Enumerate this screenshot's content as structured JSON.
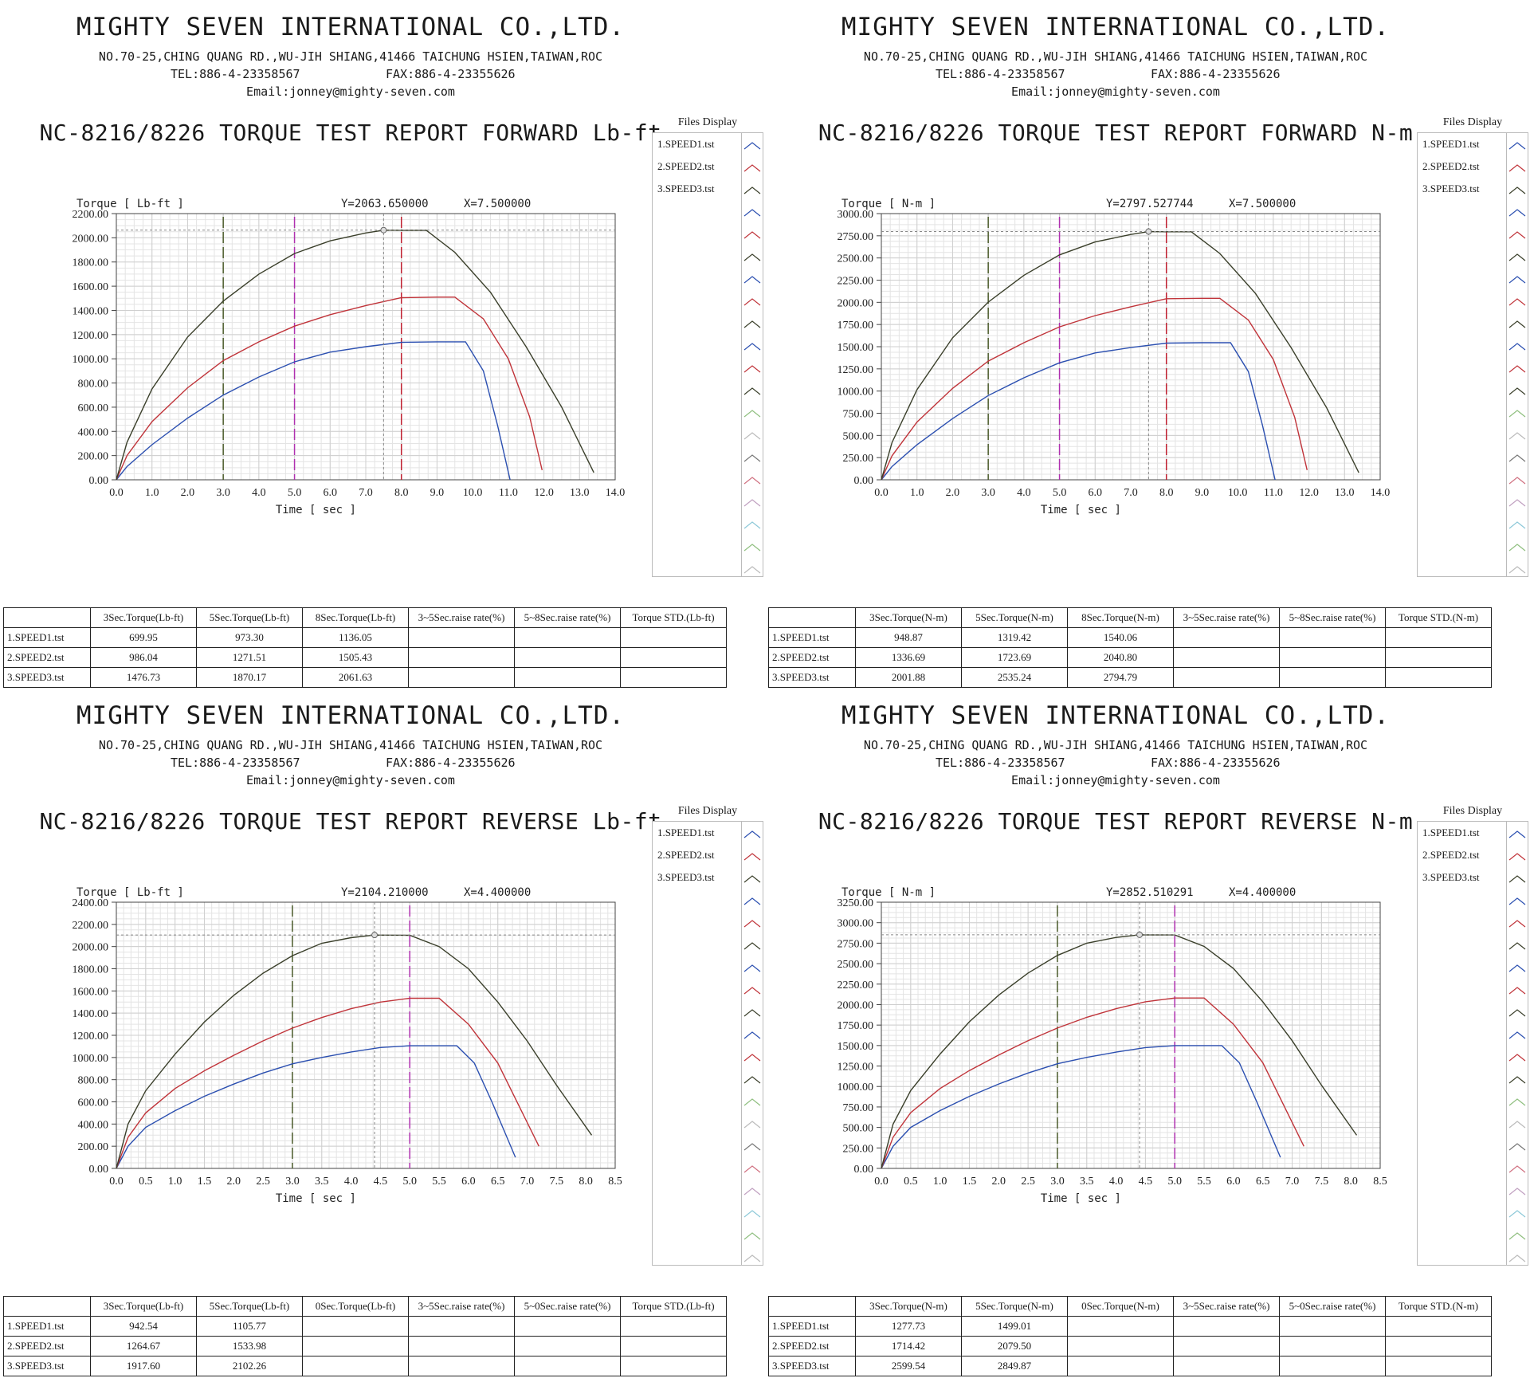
{
  "company": {
    "name": "MIGHTY SEVEN INTERNATIONAL CO.,LTD.",
    "address": "NO.70-25,CHING QUANG RD.,WU-JIH SHIANG,41466 TAICHUNG HSIEN,TAIWAN,ROC",
    "tel": "TEL:886-4-23358567",
    "fax": "FAX:886-4-23355626",
    "email": "Email:jonney@mighty-seven.com"
  },
  "files_display": {
    "title": "Files Display",
    "items": [
      "1.SPEED1.tst",
      "2.SPEED2.tst",
      "3.SPEED3.tst"
    ]
  },
  "series_colors": {
    "speed1": "#2b4fb0",
    "speed2": "#c0343a",
    "speed3": "#3a3f2a",
    "marker_green": "#4a5a2a",
    "marker_magenta": "#b030b0",
    "marker_red": "#c02030",
    "cursor": "#888888"
  },
  "chart_data": [
    {
      "type": "line",
      "title": "NC-8216/8226 TORQUE TEST REPORT FORWARD Lb-ft",
      "ylabel": "Torque [ Lb-ft ]",
      "xlabel": "Time [ sec ]",
      "cursor_readout": {
        "y_text": "Y=2063.650000",
        "x_text": "X=7.500000",
        "x": 7.5,
        "y": 2063.65
      },
      "xlim": [
        0,
        14
      ],
      "ylim": [
        0,
        2200
      ],
      "xticks": [
        0,
        1,
        2,
        3,
        4,
        5,
        6,
        7,
        8,
        9,
        10,
        11,
        12,
        13,
        14
      ],
      "yticks": [
        0,
        200,
        400,
        600,
        800,
        1000,
        1200,
        1400,
        1600,
        1800,
        2000,
        2200
      ],
      "xtick_decimals": 1,
      "grid": true,
      "markers": [
        {
          "x": 3,
          "color": "marker_green"
        },
        {
          "x": 5,
          "color": "marker_magenta"
        },
        {
          "x": 8,
          "color": "marker_red"
        }
      ],
      "series": [
        {
          "color": "speed1",
          "x": [
            0,
            0.3,
            1,
            2,
            3,
            4,
            5,
            6,
            7,
            8,
            9,
            9.8,
            10.3,
            10.7,
            11.05
          ],
          "y": [
            0,
            110,
            290,
            510,
            700,
            850,
            975,
            1055,
            1100,
            1136,
            1140,
            1140,
            900,
            450,
            0
          ]
        },
        {
          "color": "speed2",
          "x": [
            0,
            0.3,
            1,
            2,
            3,
            4,
            5,
            6,
            7,
            8,
            9,
            9.5,
            10.3,
            11,
            11.6,
            11.95
          ],
          "y": [
            0,
            200,
            480,
            760,
            985,
            1140,
            1270,
            1365,
            1440,
            1505,
            1510,
            1510,
            1330,
            1000,
            520,
            80
          ]
        },
        {
          "color": "speed3",
          "x": [
            0,
            0.3,
            1,
            2,
            3,
            4,
            5,
            6,
            7,
            7.5,
            8,
            8.7,
            9.5,
            10.5,
            11.5,
            12.5,
            13.4
          ],
          "y": [
            0,
            310,
            750,
            1180,
            1477,
            1700,
            1870,
            1975,
            2040,
            2063,
            2062,
            2062,
            1880,
            1550,
            1100,
            600,
            60
          ]
        }
      ],
      "table": {
        "headers": [
          "",
          "3Sec.Torque(Lb-ft)",
          "5Sec.Torque(Lb-ft)",
          "8Sec.Torque(Lb-ft)",
          "3~5Sec.raise rate(%)",
          "5~8Sec.raise rate(%)",
          "Torque STD.(Lb-ft)"
        ],
        "rows": [
          [
            "1.SPEED1.tst",
            "699.95",
            "973.30",
            "1136.05",
            "",
            "",
            ""
          ],
          [
            "2.SPEED2.tst",
            "986.04",
            "1271.51",
            "1505.43",
            "",
            "",
            ""
          ],
          [
            "3.SPEED3.tst",
            "1476.73",
            "1870.17",
            "2061.63",
            "",
            "",
            ""
          ]
        ]
      }
    },
    {
      "type": "line",
      "title": "NC-8216/8226 TORQUE TEST REPORT FORWARD N-m",
      "ylabel": "Torque [ N-m ]",
      "xlabel": "Time [ sec ]",
      "cursor_readout": {
        "y_text": "Y=2797.527744",
        "x_text": "X=7.500000",
        "x": 7.5,
        "y": 2797.53
      },
      "xlim": [
        0,
        14
      ],
      "ylim": [
        0,
        3000
      ],
      "xticks": [
        0,
        1,
        2,
        3,
        4,
        5,
        6,
        7,
        8,
        9,
        10,
        11,
        12,
        13,
        14
      ],
      "yticks": [
        0,
        250,
        500,
        750,
        1000,
        1250,
        1500,
        1750,
        2000,
        2250,
        2500,
        2750,
        3000
      ],
      "xtick_decimals": 1,
      "grid": true,
      "markers": [
        {
          "x": 3,
          "color": "marker_green"
        },
        {
          "x": 5,
          "color": "marker_magenta"
        },
        {
          "x": 8,
          "color": "marker_red"
        }
      ],
      "series": [
        {
          "color": "speed1",
          "x": [
            0,
            0.3,
            1,
            2,
            3,
            4,
            5,
            6,
            7,
            8,
            9,
            9.8,
            10.3,
            10.7,
            11.05
          ],
          "y": [
            0,
            150,
            395,
            690,
            949,
            1150,
            1319,
            1430,
            1490,
            1540,
            1545,
            1545,
            1220,
            610,
            0
          ]
        },
        {
          "color": "speed2",
          "x": [
            0,
            0.3,
            1,
            2,
            3,
            4,
            5,
            6,
            7,
            8,
            9,
            9.5,
            10.3,
            11,
            11.6,
            11.95
          ],
          "y": [
            0,
            270,
            650,
            1030,
            1337,
            1545,
            1724,
            1850,
            1950,
            2041,
            2045,
            2045,
            1800,
            1355,
            705,
            110
          ]
        },
        {
          "color": "speed3",
          "x": [
            0,
            0.3,
            1,
            2,
            3,
            4,
            5,
            6,
            7,
            7.5,
            8,
            8.7,
            9.5,
            10.5,
            11.5,
            12.5,
            13.4
          ],
          "y": [
            0,
            420,
            1015,
            1600,
            2002,
            2305,
            2535,
            2680,
            2765,
            2797,
            2795,
            2795,
            2550,
            2100,
            1490,
            810,
            80
          ]
        }
      ],
      "table": {
        "headers": [
          "",
          "3Sec.Torque(N-m)",
          "5Sec.Torque(N-m)",
          "8Sec.Torque(N-m)",
          "3~5Sec.raise rate(%)",
          "5~8Sec.raise rate(%)",
          "Torque STD.(N-m)"
        ],
        "rows": [
          [
            "1.SPEED1.tst",
            "948.87",
            "1319.42",
            "1540.06",
            "",
            "",
            ""
          ],
          [
            "2.SPEED2.tst",
            "1336.69",
            "1723.69",
            "2040.80",
            "",
            "",
            ""
          ],
          [
            "3.SPEED3.tst",
            "2001.88",
            "2535.24",
            "2794.79",
            "",
            "",
            ""
          ]
        ]
      }
    },
    {
      "type": "line",
      "title": "NC-8216/8226 TORQUE TEST REPORT REVERSE Lb-ft",
      "ylabel": "Torque [ Lb-ft ]",
      "xlabel": "Time [ sec ]",
      "cursor_readout": {
        "y_text": "Y=2104.210000",
        "x_text": "X=4.400000",
        "x": 4.4,
        "y": 2104.21
      },
      "xlim": [
        0,
        8.5
      ],
      "ylim": [
        0,
        2400
      ],
      "xticks": [
        0,
        0.5,
        1,
        1.5,
        2,
        2.5,
        3,
        3.5,
        4,
        4.5,
        5,
        5.5,
        6,
        6.5,
        7,
        7.5,
        8,
        8.5
      ],
      "yticks": [
        0,
        200,
        400,
        600,
        800,
        1000,
        1200,
        1400,
        1600,
        1800,
        2000,
        2200,
        2400
      ],
      "xtick_decimals": 1,
      "grid": true,
      "markers": [
        {
          "x": 3,
          "color": "marker_green"
        },
        {
          "x": 5,
          "color": "marker_magenta"
        }
      ],
      "series": [
        {
          "color": "speed1",
          "x": [
            0,
            0.2,
            0.5,
            1,
            1.5,
            2,
            2.5,
            3,
            3.5,
            4,
            4.5,
            5,
            5.5,
            5.8,
            6.1,
            6.4,
            6.8
          ],
          "y": [
            0,
            200,
            370,
            520,
            650,
            760,
            860,
            943,
            1000,
            1050,
            1090,
            1106,
            1106,
            1106,
            950,
            600,
            100
          ]
        },
        {
          "color": "speed2",
          "x": [
            0,
            0.2,
            0.5,
            1,
            1.5,
            2,
            2.5,
            3,
            3.5,
            4,
            4.5,
            5,
            5.5,
            5.5,
            6,
            6.5,
            7.2
          ],
          "y": [
            0,
            280,
            500,
            720,
            880,
            1020,
            1150,
            1265,
            1360,
            1440,
            1500,
            1534,
            1534,
            1534,
            1300,
            950,
            200
          ]
        },
        {
          "color": "speed3",
          "x": [
            0,
            0.2,
            0.5,
            1,
            1.5,
            2,
            2.5,
            3,
            3.5,
            4,
            4.4,
            5,
            5,
            5.5,
            6,
            6.5,
            7,
            7.5,
            8.1
          ],
          "y": [
            0,
            400,
            700,
            1030,
            1320,
            1560,
            1760,
            1918,
            2030,
            2080,
            2104,
            2102,
            2102,
            2000,
            1800,
            1500,
            1150,
            750,
            300
          ]
        }
      ],
      "table": {
        "headers": [
          "",
          "3Sec.Torque(Lb-ft)",
          "5Sec.Torque(Lb-ft)",
          "0Sec.Torque(Lb-ft)",
          "3~5Sec.raise rate(%)",
          "5~0Sec.raise rate(%)",
          "Torque STD.(Lb-ft)"
        ],
        "rows": [
          [
            "1.SPEED1.tst",
            "942.54",
            "1105.77",
            "",
            "",
            "",
            ""
          ],
          [
            "2.SPEED2.tst",
            "1264.67",
            "1533.98",
            "",
            "",
            "",
            ""
          ],
          [
            "3.SPEED3.tst",
            "1917.60",
            "2102.26",
            "",
            "",
            "",
            ""
          ]
        ]
      }
    },
    {
      "type": "line",
      "title": "NC-8216/8226 TORQUE TEST REPORT REVERSE N-m",
      "ylabel": "Torque [ N-m ]",
      "xlabel": "Time [ sec ]",
      "cursor_readout": {
        "y_text": "Y=2852.510291",
        "x_text": "X=4.400000",
        "x": 4.4,
        "y": 2852.51
      },
      "xlim": [
        0,
        8.5
      ],
      "ylim": [
        0,
        3250
      ],
      "xticks": [
        0,
        0.5,
        1,
        1.5,
        2,
        2.5,
        3,
        3.5,
        4,
        4.5,
        5,
        5.5,
        6,
        6.5,
        7,
        7.5,
        8,
        8.5
      ],
      "yticks": [
        0,
        250,
        500,
        750,
        1000,
        1250,
        1500,
        1750,
        2000,
        2250,
        2500,
        2750,
        3000,
        3250
      ],
      "xtick_decimals": 1,
      "grid": true,
      "markers": [
        {
          "x": 3,
          "color": "marker_green"
        },
        {
          "x": 5,
          "color": "marker_magenta"
        }
      ],
      "series": [
        {
          "color": "speed1",
          "x": [
            0,
            0.2,
            0.5,
            1,
            1.5,
            2,
            2.5,
            3,
            3.5,
            4,
            4.5,
            5,
            5.5,
            5.8,
            6.1,
            6.4,
            6.8
          ],
          "y": [
            0,
            270,
            500,
            705,
            880,
            1030,
            1165,
            1278,
            1355,
            1420,
            1475,
            1499,
            1499,
            1499,
            1290,
            810,
            135
          ]
        },
        {
          "color": "speed2",
          "x": [
            0,
            0.2,
            0.5,
            1,
            1.5,
            2,
            2.5,
            3,
            3.5,
            4,
            4.5,
            5,
            5.5,
            5.5,
            6,
            6.5,
            7.2
          ],
          "y": [
            0,
            380,
            680,
            975,
            1195,
            1385,
            1560,
            1714,
            1845,
            1950,
            2035,
            2080,
            2080,
            2080,
            1760,
            1290,
            270
          ]
        },
        {
          "color": "speed3",
          "x": [
            0,
            0.2,
            0.5,
            1,
            1.5,
            2,
            2.5,
            3,
            3.5,
            4,
            4.4,
            5,
            5,
            5.5,
            6,
            6.5,
            7,
            7.5,
            8.1
          ],
          "y": [
            0,
            540,
            950,
            1395,
            1790,
            2115,
            2385,
            2600,
            2750,
            2820,
            2852,
            2850,
            2850,
            2710,
            2440,
            2035,
            1560,
            1015,
            405
          ]
        }
      ],
      "table": {
        "headers": [
          "",
          "3Sec.Torque(N-m)",
          "5Sec.Torque(N-m)",
          "0Sec.Torque(N-m)",
          "3~5Sec.raise rate(%)",
          "5~0Sec.raise rate(%)",
          "Torque STD.(N-m)"
        ],
        "rows": [
          [
            "1.SPEED1.tst",
            "1277.73",
            "1499.01",
            "",
            "",
            "",
            ""
          ],
          [
            "2.SPEED2.tst",
            "1714.42",
            "2079.50",
            "",
            "",
            "",
            ""
          ],
          [
            "3.SPEED3.tst",
            "2599.54",
            "2849.87",
            "",
            "",
            "",
            ""
          ]
        ]
      }
    }
  ]
}
